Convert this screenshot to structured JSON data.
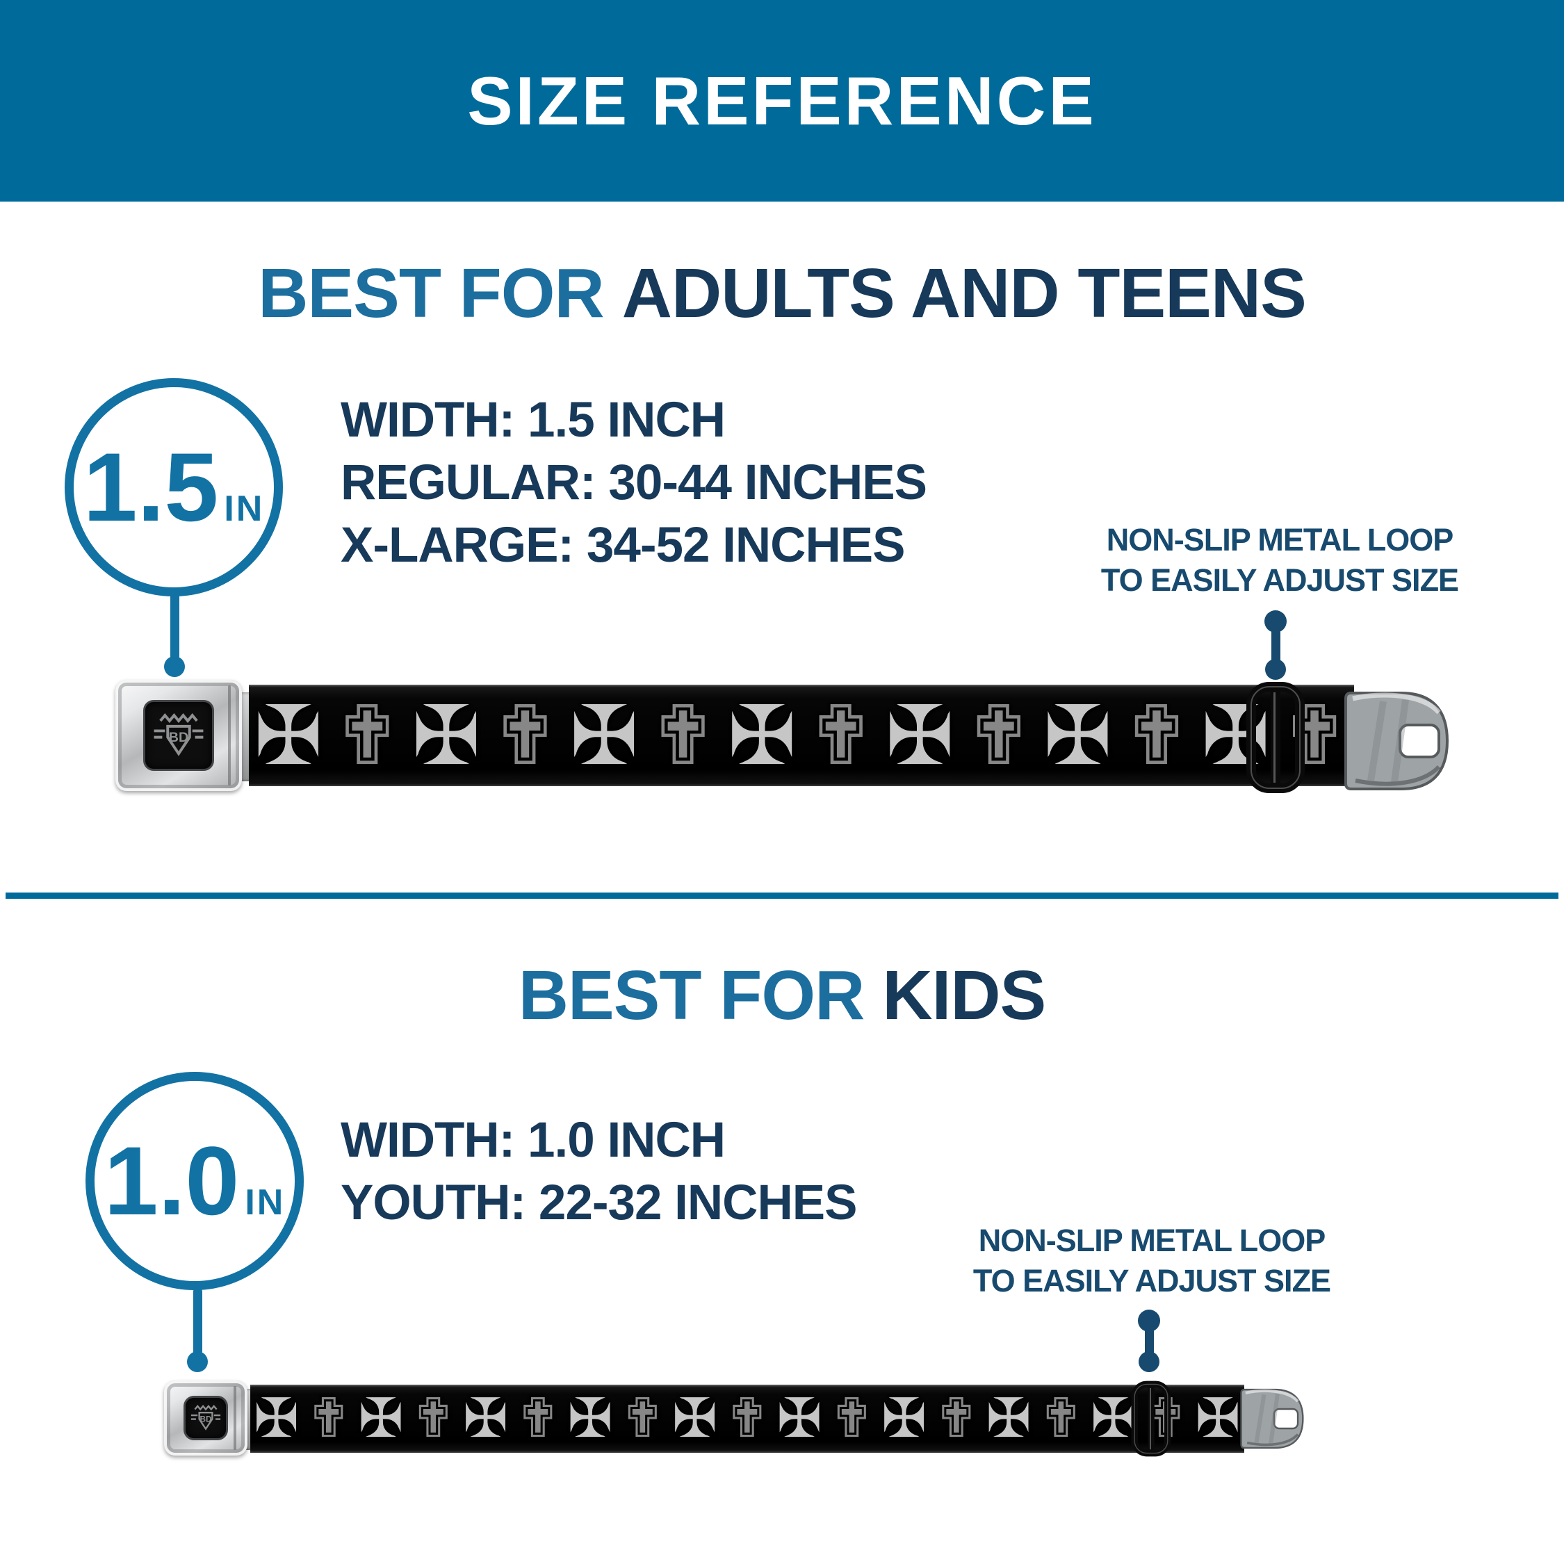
{
  "banner": {
    "title": "SIZE REFERENCE"
  },
  "sections": [
    {
      "heading": {
        "accent": "BEST FOR",
        "rest": "ADULTS AND TEENS"
      },
      "circle": {
        "value": "1.5",
        "unit": "IN"
      },
      "specs": [
        "WIDTH: 1.5 INCH",
        "REGULAR: 30-44 INCHES",
        "X-LARGE: 34-52 INCHES"
      ],
      "callout": {
        "line1": "NON-SLIP METAL LOOP",
        "line2": "TO EASILY ADJUST SIZE"
      }
    },
    {
      "heading": {
        "accent": "BEST FOR",
        "rest": "KIDS"
      },
      "circle": {
        "value": "1.0",
        "unit": "IN"
      },
      "specs": [
        "WIDTH: 1.0 INCH",
        "YOUTH: 22-32 INCHES"
      ],
      "callout": {
        "line1": "NON-SLIP METAL LOOP",
        "line2": "TO EASILY ADJUST SIZE"
      }
    }
  ],
  "belts": [
    {
      "logo": "BD",
      "cross_count": 14,
      "glyphs": [
        "✠",
        "✟"
      ]
    },
    {
      "logo": "BD",
      "cross_count": 19,
      "glyphs": [
        "✠",
        "✟"
      ]
    }
  ],
  "colors": {
    "banner_blue": "#006B9B",
    "accent_blue": "#1C6E9E",
    "navy": "#17395A",
    "callout_navy": "#174A6E",
    "pointer_blue": "#1272A3"
  }
}
